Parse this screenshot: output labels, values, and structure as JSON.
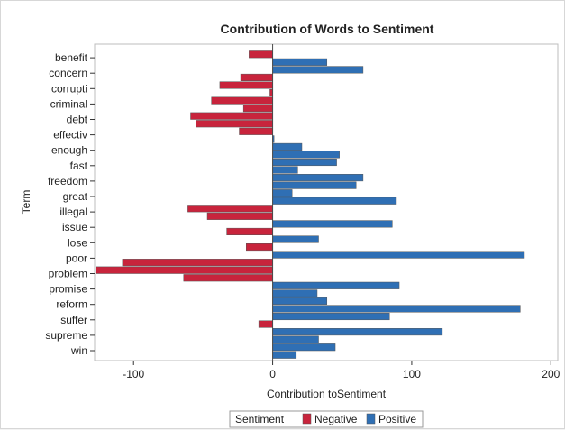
{
  "chart_data": {
    "type": "bar",
    "orientation": "horizontal",
    "title": "Contribution of Words to Sentiment",
    "xlabel": "Contribution toSentiment",
    "ylabel": "Term",
    "xlim": [
      -128,
      205
    ],
    "xticks": [
      -100,
      0,
      100,
      200
    ],
    "grid": false,
    "legend_placement": "bottom-center",
    "legend_title": "Sentiment",
    "colors": {
      "Negative": "#c8243c",
      "Positive": "#2f6fb4"
    },
    "bars": [
      {
        "term": "benefit",
        "sentiment": "Negative",
        "value": -17
      },
      {
        "term": "",
        "sentiment": "Positive",
        "value": 39
      },
      {
        "term": "concern",
        "sentiment": "Positive",
        "value": 65
      },
      {
        "term": "",
        "sentiment": "Negative",
        "value": -23
      },
      {
        "term": "corrupti",
        "sentiment": "Negative",
        "value": -38
      },
      {
        "term": "",
        "sentiment": "Negative",
        "value": -2
      },
      {
        "term": "criminal",
        "sentiment": "Negative",
        "value": -44
      },
      {
        "term": "",
        "sentiment": "Negative",
        "value": -21
      },
      {
        "term": "debt",
        "sentiment": "Negative",
        "value": -59
      },
      {
        "term": "",
        "sentiment": "Negative",
        "value": -55
      },
      {
        "term": "effectiv",
        "sentiment": "Negative",
        "value": -24
      },
      {
        "term": "",
        "sentiment": "Positive",
        "value": 1
      },
      {
        "term": "enough",
        "sentiment": "Positive",
        "value": 21
      },
      {
        "term": "",
        "sentiment": "Positive",
        "value": 48
      },
      {
        "term": "fast",
        "sentiment": "Positive",
        "value": 46
      },
      {
        "term": "",
        "sentiment": "Positive",
        "value": 18
      },
      {
        "term": "freedom",
        "sentiment": "Positive",
        "value": 65
      },
      {
        "term": "",
        "sentiment": "Positive",
        "value": 60
      },
      {
        "term": "great",
        "sentiment": "Positive",
        "value": 14
      },
      {
        "term": "",
        "sentiment": "Positive",
        "value": 89
      },
      {
        "term": "illegal",
        "sentiment": "Negative",
        "value": -61
      },
      {
        "term": "",
        "sentiment": "Negative",
        "value": -47
      },
      {
        "term": "issue",
        "sentiment": "Positive",
        "value": 86
      },
      {
        "term": "",
        "sentiment": "Negative",
        "value": -33
      },
      {
        "term": "lose",
        "sentiment": "Positive",
        "value": 33
      },
      {
        "term": "",
        "sentiment": "Negative",
        "value": -19
      },
      {
        "term": "poor",
        "sentiment": "Positive",
        "value": 181
      },
      {
        "term": "",
        "sentiment": "Negative",
        "value": -108
      },
      {
        "term": "problem",
        "sentiment": "Negative",
        "value": -127
      },
      {
        "term": "",
        "sentiment": "Negative",
        "value": -64
      },
      {
        "term": "promise",
        "sentiment": "Positive",
        "value": 91
      },
      {
        "term": "",
        "sentiment": "Positive",
        "value": 32
      },
      {
        "term": "reform",
        "sentiment": "Positive",
        "value": 39
      },
      {
        "term": "",
        "sentiment": "Positive",
        "value": 178
      },
      {
        "term": "suffer",
        "sentiment": "Positive",
        "value": 84
      },
      {
        "term": "",
        "sentiment": "Negative",
        "value": -10
      },
      {
        "term": "supreme",
        "sentiment": "Positive",
        "value": 122
      },
      {
        "term": "",
        "sentiment": "Positive",
        "value": 33
      },
      {
        "term": "win",
        "sentiment": "Positive",
        "value": 45
      },
      {
        "term": "",
        "sentiment": "Positive",
        "value": 17
      }
    ]
  }
}
